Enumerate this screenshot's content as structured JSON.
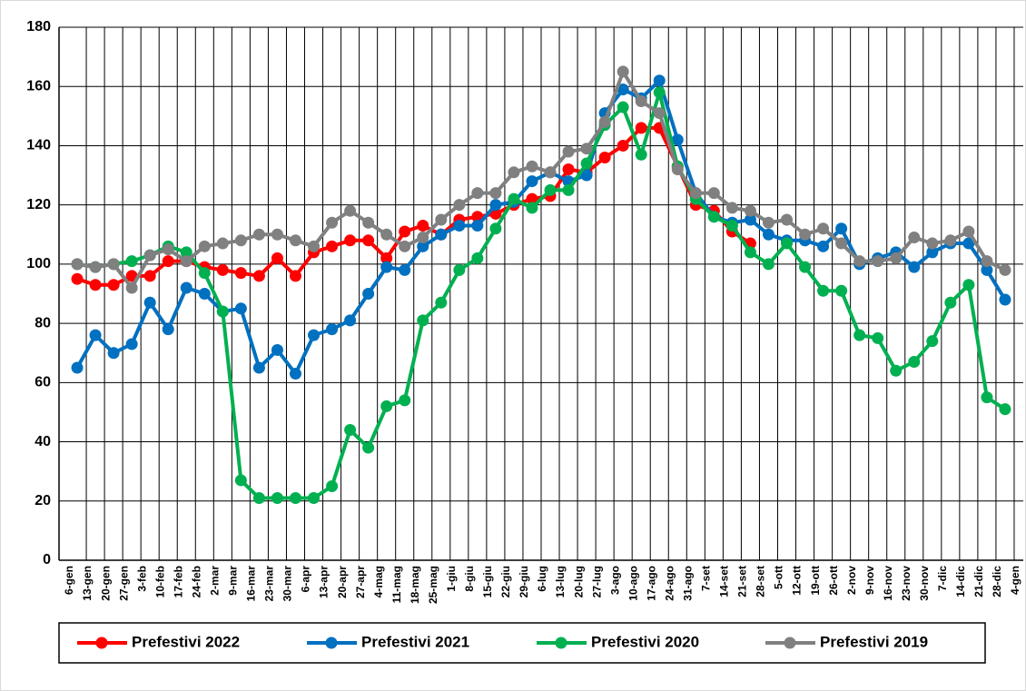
{
  "chart_data": {
    "type": "line",
    "categories": [
      "6-gen",
      "13-gen",
      "20-gen",
      "27-gen",
      "3-feb",
      "10-feb",
      "17-feb",
      "24-feb",
      "2-mar",
      "9-mar",
      "16-mar",
      "23-mar",
      "30-mar",
      "6-apr",
      "13-apr",
      "20-apr",
      "27-apr",
      "4-mag",
      "11-mag",
      "18-mag",
      "25-mag",
      "1-giu",
      "8-giu",
      "15-giu",
      "22-giu",
      "29-giu",
      "6-lug",
      "13-lug",
      "20-lug",
      "27-lug",
      "3-ago",
      "10-ago",
      "17-ago",
      "24-ago",
      "31-ago",
      "7-set",
      "14-set",
      "21-set",
      "28-set",
      "5-ott",
      "12-ott",
      "19-ott",
      "26-ott",
      "2-nov",
      "9-nov",
      "16-nov",
      "23-nov",
      "30-nov",
      "7-dic",
      "14-dic",
      "21-dic",
      "28-dic",
      "4-gen"
    ],
    "series": [
      {
        "name": "Prefestivi 2022",
        "color": "#ff0000",
        "values": [
          95,
          93,
          93,
          96,
          96,
          101,
          101,
          99,
          98,
          97,
          96,
          102,
          96,
          104,
          106,
          108,
          108,
          102,
          111,
          113,
          110,
          115,
          116,
          117,
          120,
          122,
          123,
          132,
          131,
          136,
          140,
          146,
          146,
          133,
          120,
          118,
          111,
          107,
          null,
          null,
          null,
          null,
          null,
          null,
          null,
          null,
          null,
          null,
          null,
          null,
          null,
          null,
          null
        ]
      },
      {
        "name": "Prefestivi 2021",
        "color": "#0070c0",
        "values": [
          65,
          76,
          70,
          73,
          87,
          78,
          92,
          90,
          84,
          85,
          65,
          71,
          63,
          76,
          78,
          81,
          90,
          99,
          98,
          106,
          110,
          113,
          113,
          120,
          121,
          128,
          131,
          128,
          130,
          151,
          159,
          156,
          162,
          142,
          124,
          116,
          114,
          115,
          110,
          108,
          108,
          106,
          112,
          100,
          102,
          104,
          99,
          104,
          107,
          107,
          98,
          88,
          null
        ]
      },
      {
        "name": "Prefestivi 2020",
        "color": "#00b050",
        "values": [
          100,
          99,
          100,
          101,
          103,
          106,
          104,
          97,
          84,
          27,
          21,
          21,
          21,
          21,
          25,
          44,
          38,
          52,
          54,
          81,
          87,
          98,
          102,
          112,
          122,
          119,
          125,
          125,
          134,
          147,
          153,
          137,
          158,
          133,
          122,
          116,
          113,
          104,
          100,
          107,
          99,
          91,
          91,
          76,
          75,
          64,
          67,
          74,
          87,
          93,
          55,
          51,
          null
        ]
      },
      {
        "name": "Prefestivi 2019",
        "color": "#808080",
        "values": [
          100,
          99,
          100,
          92,
          103,
          105,
          101,
          106,
          107,
          108,
          110,
          110,
          108,
          106,
          114,
          118,
          114,
          110,
          106,
          109,
          115,
          120,
          124,
          124,
          131,
          133,
          131,
          138,
          139,
          148,
          165,
          155,
          151,
          132,
          124,
          124,
          119,
          118,
          114,
          115,
          110,
          112,
          107,
          101,
          101,
          102,
          109,
          107,
          108,
          111,
          101,
          98,
          null
        ]
      }
    ],
    "ylim": [
      0,
      180
    ],
    "yticks": [
      0,
      20,
      40,
      60,
      80,
      100,
      120,
      140,
      160,
      180
    ],
    "grid": true,
    "legend": "bottom"
  }
}
